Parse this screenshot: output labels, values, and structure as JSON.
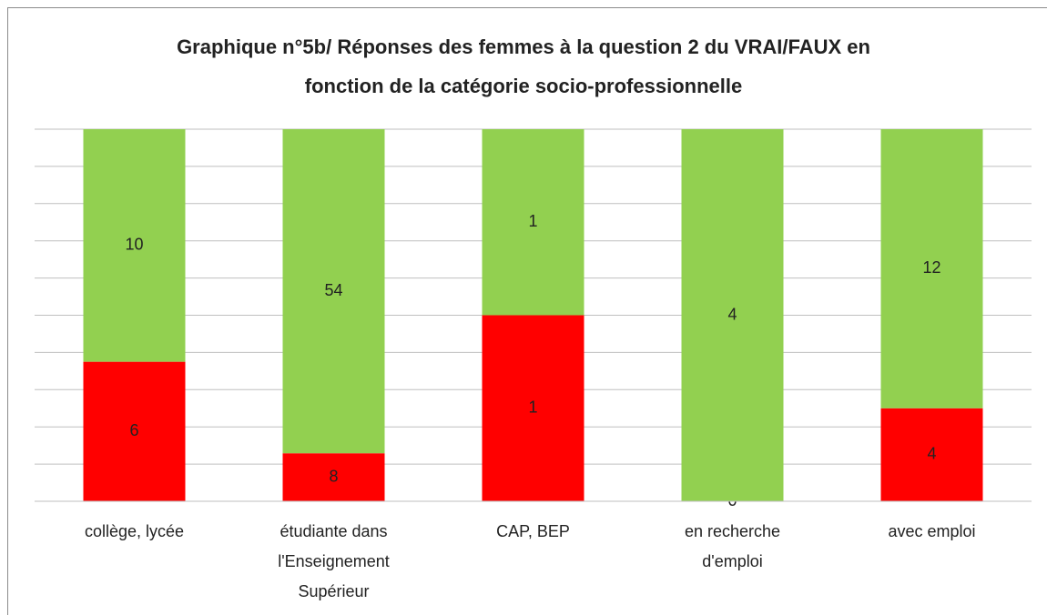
{
  "chart_data": {
    "type": "bar",
    "stacking": "percent",
    "title": "Graphique n°5b/ Réponses des femmes à la question 2 du VRAI/FAUX en fonction de la catégorie socio-professionnelle",
    "categories": [
      "collège, lycée",
      "étudiante dans l'Enseignement Supérieur",
      "CAP, BEP",
      "en recherche d'emploi",
      "avec emploi"
    ],
    "series": [
      {
        "color": "#ff0000",
        "values": [
          6,
          8,
          1,
          0,
          4
        ]
      },
      {
        "color": "#92d050",
        "values": [
          10,
          54,
          1,
          4,
          12
        ]
      }
    ],
    "ylim": [
      0,
      100
    ],
    "yticks": [
      0,
      10,
      20,
      30,
      40,
      50,
      60,
      70,
      80,
      90,
      100
    ],
    "show_ytick_labels": false,
    "grid": true
  }
}
